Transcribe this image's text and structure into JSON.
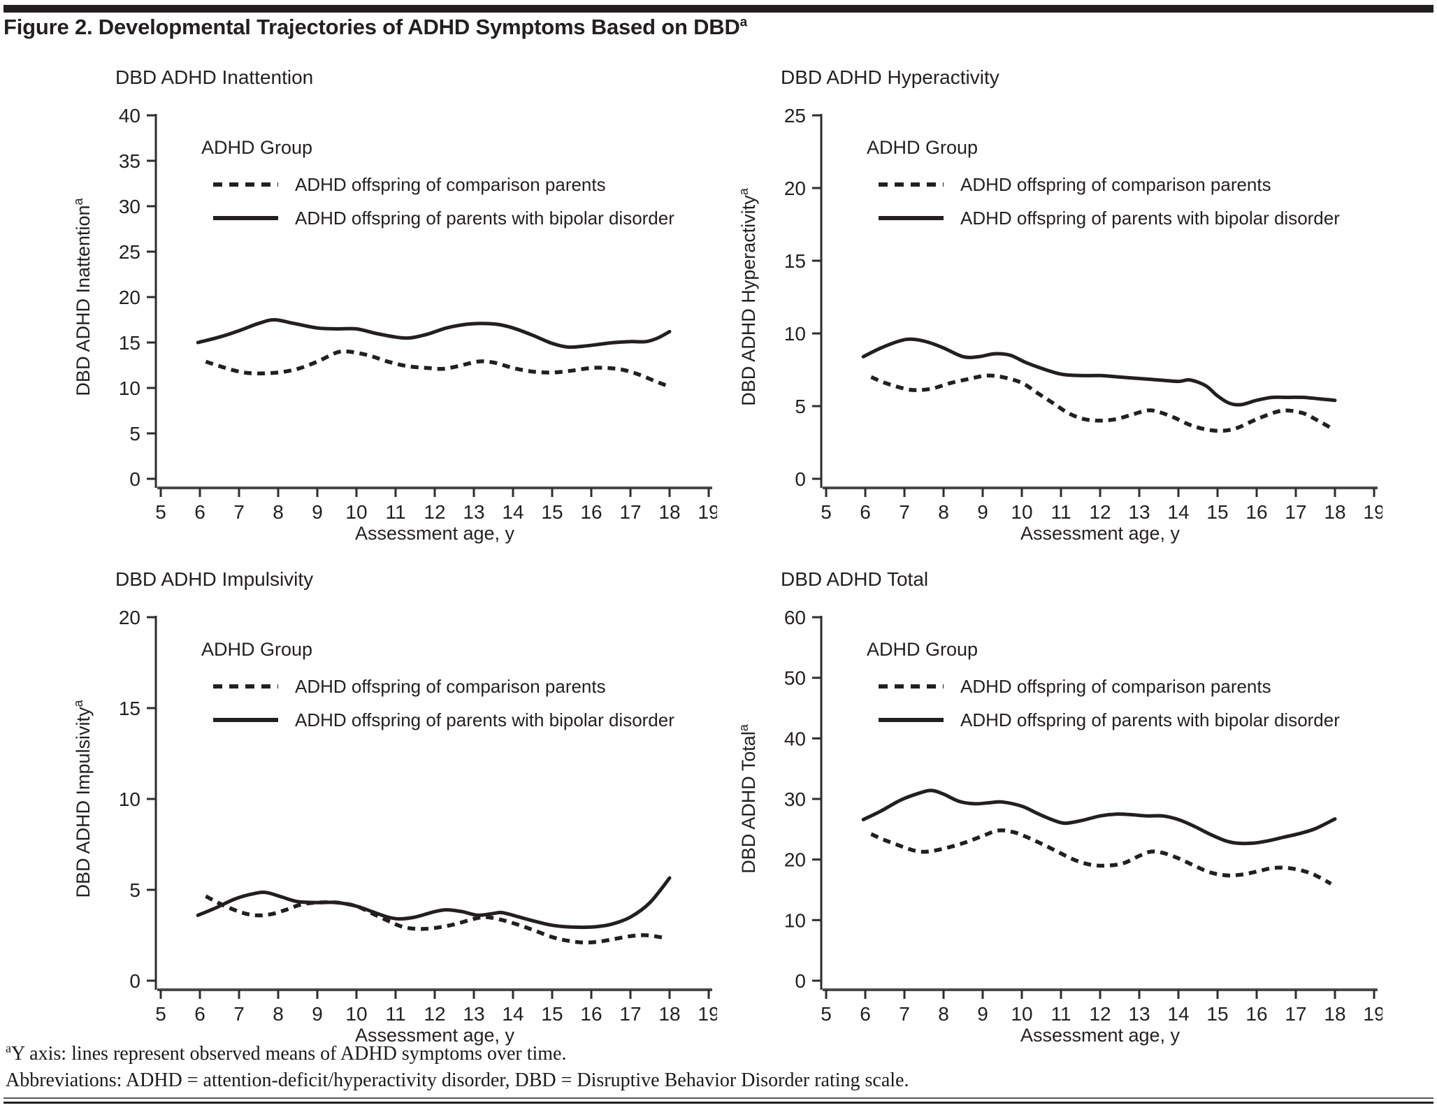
{
  "page": {
    "title_main": "Figure 2. Developmental Trajectories of ADHD Symptoms Based on DBD",
    "title_sup": "a",
    "footnote_sup": "a",
    "footnote1": "Y axis: lines represent observed means of ADHD symptoms over time.",
    "footnote2": "Abbreviations: ADHD = attention-deficit/hyperactivity disorder, DBD = Disruptive Behavior Disorder rating scale."
  },
  "chart_data": [
    {
      "type": "line",
      "title": "DBD ADHD Inattention",
      "ylabel": "DBD ADHD Inattention",
      "ylabel_sup": "a",
      "xlabel": "Assessment age, y",
      "ylim": [
        0,
        40
      ],
      "ytick_step": 5,
      "xlim": [
        5,
        19
      ],
      "xtick_step": 1,
      "grid": false,
      "legend_position": "inside top-left",
      "legend_title": "ADHD Group",
      "series": [
        {
          "name": "ADHD offspring of comparison parents",
          "style": "dashed",
          "points": [
            [
              6.15,
              12.9
            ],
            [
              6.5,
              12.4
            ],
            [
              7,
              11.8
            ],
            [
              7.4,
              11.6
            ],
            [
              8,
              11.7
            ],
            [
              8.5,
              12.1
            ],
            [
              9,
              12.9
            ],
            [
              9.5,
              13.9
            ],
            [
              9.8,
              14.0
            ],
            [
              10.3,
              13.6
            ],
            [
              10.8,
              12.9
            ],
            [
              11.3,
              12.4
            ],
            [
              11.8,
              12.2
            ],
            [
              12.2,
              12.1
            ],
            [
              12.6,
              12.4
            ],
            [
              13.1,
              12.9
            ],
            [
              13.5,
              12.8
            ],
            [
              14,
              12.2
            ],
            [
              14.5,
              11.8
            ],
            [
              15,
              11.7
            ],
            [
              15.5,
              11.9
            ],
            [
              16,
              12.2
            ],
            [
              16.4,
              12.2
            ],
            [
              16.8,
              12.0
            ],
            [
              17.2,
              11.5
            ],
            [
              17.6,
              10.8
            ],
            [
              17.9,
              10.3
            ]
          ]
        },
        {
          "name": "ADHD offspring of parents with bipolar disorder",
          "style": "solid",
          "points": [
            [
              5.95,
              15.0
            ],
            [
              6.5,
              15.6
            ],
            [
              7,
              16.3
            ],
            [
              7.5,
              17.1
            ],
            [
              7.9,
              17.5
            ],
            [
              8.4,
              17.1
            ],
            [
              9,
              16.6
            ],
            [
              9.5,
              16.5
            ],
            [
              10,
              16.5
            ],
            [
              10.5,
              16.0
            ],
            [
              11,
              15.6
            ],
            [
              11.35,
              15.5
            ],
            [
              11.8,
              15.9
            ],
            [
              12.3,
              16.6
            ],
            [
              12.8,
              17.0
            ],
            [
              13.2,
              17.1
            ],
            [
              13.6,
              17.0
            ],
            [
              14,
              16.6
            ],
            [
              14.5,
              15.8
            ],
            [
              15,
              14.9
            ],
            [
              15.4,
              14.5
            ],
            [
              15.8,
              14.6
            ],
            [
              16.2,
              14.8
            ],
            [
              16.6,
              15.0
            ],
            [
              17,
              15.1
            ],
            [
              17.4,
              15.1
            ],
            [
              17.7,
              15.5
            ],
            [
              18,
              16.2
            ]
          ]
        }
      ]
    },
    {
      "type": "line",
      "title": "DBD ADHD Hyperactivity",
      "ylabel": "DBD ADHD Hyperactivity",
      "ylabel_sup": "a",
      "xlabel": "Assessment age, y",
      "ylim": [
        0,
        25
      ],
      "ytick_step": 5,
      "xlim": [
        5,
        19
      ],
      "xtick_step": 1,
      "grid": false,
      "legend_position": "inside top-left",
      "legend_title": "ADHD Group",
      "series": [
        {
          "name": "ADHD offspring of comparison parents",
          "style": "dashed",
          "points": [
            [
              6.15,
              7.0
            ],
            [
              6.5,
              6.6
            ],
            [
              7,
              6.2
            ],
            [
              7.3,
              6.1
            ],
            [
              7.7,
              6.2
            ],
            [
              8.2,
              6.6
            ],
            [
              8.7,
              6.9
            ],
            [
              9.1,
              7.1
            ],
            [
              9.5,
              7.0
            ],
            [
              10,
              6.6
            ],
            [
              10.4,
              5.9
            ],
            [
              10.8,
              5.2
            ],
            [
              11.2,
              4.5
            ],
            [
              11.6,
              4.1
            ],
            [
              12,
              4.0
            ],
            [
              12.4,
              4.1
            ],
            [
              12.8,
              4.4
            ],
            [
              13.2,
              4.7
            ],
            [
              13.5,
              4.6
            ],
            [
              13.9,
              4.2
            ],
            [
              14.3,
              3.7
            ],
            [
              14.7,
              3.4
            ],
            [
              15.1,
              3.3
            ],
            [
              15.5,
              3.5
            ],
            [
              16,
              4.1
            ],
            [
              16.5,
              4.6
            ],
            [
              16.8,
              4.7
            ],
            [
              17.2,
              4.5
            ],
            [
              17.5,
              4.1
            ],
            [
              17.9,
              3.5
            ]
          ]
        },
        {
          "name": "ADHD offspring of parents with bipolar disorder",
          "style": "solid",
          "points": [
            [
              5.95,
              8.4
            ],
            [
              6.4,
              9.0
            ],
            [
              6.9,
              9.5
            ],
            [
              7.2,
              9.6
            ],
            [
              7.6,
              9.4
            ],
            [
              8,
              9.0
            ],
            [
              8.5,
              8.4
            ],
            [
              8.9,
              8.4
            ],
            [
              9.3,
              8.6
            ],
            [
              9.7,
              8.5
            ],
            [
              10.1,
              8.0
            ],
            [
              10.5,
              7.6
            ],
            [
              11,
              7.2
            ],
            [
              11.5,
              7.1
            ],
            [
              12,
              7.1
            ],
            [
              12.5,
              7.0
            ],
            [
              13,
              6.9
            ],
            [
              13.5,
              6.8
            ],
            [
              14,
              6.7
            ],
            [
              14.3,
              6.8
            ],
            [
              14.7,
              6.4
            ],
            [
              15,
              5.7
            ],
            [
              15.3,
              5.2
            ],
            [
              15.6,
              5.1
            ],
            [
              16,
              5.4
            ],
            [
              16.4,
              5.6
            ],
            [
              16.8,
              5.6
            ],
            [
              17.2,
              5.6
            ],
            [
              17.6,
              5.5
            ],
            [
              18,
              5.4
            ]
          ]
        }
      ]
    },
    {
      "type": "line",
      "title": "DBD ADHD Impulsivity",
      "ylabel": "DBD ADHD Impulsivity",
      "ylabel_sup": "a",
      "xlabel": "Assessment age, y",
      "ylim": [
        0,
        20
      ],
      "ytick_step": 5,
      "xlim": [
        5,
        19
      ],
      "xtick_step": 1,
      "grid": false,
      "legend_position": "inside top-left",
      "legend_title": "ADHD Group",
      "series": [
        {
          "name": "ADHD offspring of comparison parents",
          "style": "dashed",
          "points": [
            [
              6.15,
              4.65
            ],
            [
              6.5,
              4.25
            ],
            [
              7,
              3.8
            ],
            [
              7.4,
              3.6
            ],
            [
              7.8,
              3.65
            ],
            [
              8.2,
              3.9
            ],
            [
              8.6,
              4.2
            ],
            [
              9,
              4.3
            ],
            [
              9.5,
              4.3
            ],
            [
              10,
              4.1
            ],
            [
              10.4,
              3.7
            ],
            [
              10.8,
              3.3
            ],
            [
              11.2,
              2.95
            ],
            [
              11.6,
              2.85
            ],
            [
              12,
              2.9
            ],
            [
              12.5,
              3.1
            ],
            [
              13,
              3.4
            ],
            [
              13.3,
              3.5
            ],
            [
              13.7,
              3.35
            ],
            [
              14.1,
              3.1
            ],
            [
              14.5,
              2.8
            ],
            [
              15,
              2.4
            ],
            [
              15.4,
              2.2
            ],
            [
              15.8,
              2.1
            ],
            [
              16.2,
              2.15
            ],
            [
              16.6,
              2.3
            ],
            [
              17,
              2.45
            ],
            [
              17.4,
              2.5
            ],
            [
              17.9,
              2.35
            ]
          ]
        },
        {
          "name": "ADHD offspring of parents with bipolar disorder",
          "style": "solid",
          "points": [
            [
              5.95,
              3.6
            ],
            [
              6.4,
              4.0
            ],
            [
              6.9,
              4.5
            ],
            [
              7.4,
              4.8
            ],
            [
              7.7,
              4.85
            ],
            [
              8.1,
              4.6
            ],
            [
              8.5,
              4.35
            ],
            [
              9,
              4.3
            ],
            [
              9.5,
              4.3
            ],
            [
              10,
              4.1
            ],
            [
              10.4,
              3.8
            ],
            [
              10.8,
              3.5
            ],
            [
              11.1,
              3.4
            ],
            [
              11.5,
              3.5
            ],
            [
              12,
              3.8
            ],
            [
              12.3,
              3.9
            ],
            [
              12.7,
              3.8
            ],
            [
              13.1,
              3.6
            ],
            [
              13.5,
              3.7
            ],
            [
              13.7,
              3.75
            ],
            [
              14,
              3.6
            ],
            [
              14.5,
              3.3
            ],
            [
              15,
              3.05
            ],
            [
              15.5,
              2.95
            ],
            [
              16,
              2.95
            ],
            [
              16.5,
              3.1
            ],
            [
              17,
              3.5
            ],
            [
              17.5,
              4.3
            ],
            [
              18,
              5.65
            ]
          ]
        }
      ]
    },
    {
      "type": "line",
      "title": "DBD ADHD Total",
      "ylabel": "DBD ADHD Total",
      "ylabel_sup": "a",
      "xlabel": "Assessment age, y",
      "ylim": [
        0,
        60
      ],
      "ytick_step": 10,
      "xlim": [
        5,
        19
      ],
      "xtick_step": 1,
      "grid": false,
      "legend_position": "inside top-left",
      "legend_title": "ADHD Group",
      "series": [
        {
          "name": "ADHD offspring of comparison parents",
          "style": "dashed",
          "points": [
            [
              6.15,
              24.2
            ],
            [
              6.5,
              23.2
            ],
            [
              7,
              22.0
            ],
            [
              7.3,
              21.4
            ],
            [
              7.6,
              21.3
            ],
            [
              8,
              21.8
            ],
            [
              8.5,
              22.7
            ],
            [
              9,
              23.9
            ],
            [
              9.4,
              24.8
            ],
            [
              9.8,
              24.5
            ],
            [
              10.2,
              23.5
            ],
            [
              10.6,
              22.3
            ],
            [
              11,
              21.0
            ],
            [
              11.4,
              19.8
            ],
            [
              11.8,
              19.1
            ],
            [
              12.2,
              19.0
            ],
            [
              12.6,
              19.4
            ],
            [
              13,
              20.6
            ],
            [
              13.3,
              21.3
            ],
            [
              13.6,
              21.1
            ],
            [
              14,
              20.2
            ],
            [
              14.4,
              19.0
            ],
            [
              14.8,
              17.9
            ],
            [
              15.2,
              17.4
            ],
            [
              15.6,
              17.5
            ],
            [
              16,
              18.0
            ],
            [
              16.4,
              18.6
            ],
            [
              16.8,
              18.6
            ],
            [
              17.2,
              18.1
            ],
            [
              17.5,
              17.4
            ],
            [
              17.9,
              16.0
            ]
          ]
        },
        {
          "name": "ADHD offspring of parents with bipolar disorder",
          "style": "solid",
          "points": [
            [
              5.95,
              26.6
            ],
            [
              6.4,
              28.0
            ],
            [
              6.9,
              29.8
            ],
            [
              7.4,
              31.0
            ],
            [
              7.7,
              31.4
            ],
            [
              8,
              30.8
            ],
            [
              8.4,
              29.6
            ],
            [
              8.8,
              29.2
            ],
            [
              9.2,
              29.4
            ],
            [
              9.5,
              29.5
            ],
            [
              10,
              28.8
            ],
            [
              10.4,
              27.6
            ],
            [
              10.8,
              26.5
            ],
            [
              11.1,
              26.0
            ],
            [
              11.5,
              26.4
            ],
            [
              12,
              27.2
            ],
            [
              12.4,
              27.5
            ],
            [
              12.8,
              27.4
            ],
            [
              13.2,
              27.2
            ],
            [
              13.6,
              27.2
            ],
            [
              14,
              26.6
            ],
            [
              14.4,
              25.5
            ],
            [
              14.8,
              24.2
            ],
            [
              15.2,
              23.1
            ],
            [
              15.5,
              22.7
            ],
            [
              15.9,
              22.7
            ],
            [
              16.3,
              23.1
            ],
            [
              16.7,
              23.7
            ],
            [
              17.1,
              24.3
            ],
            [
              17.5,
              25.1
            ],
            [
              18,
              26.7
            ]
          ]
        }
      ]
    }
  ]
}
